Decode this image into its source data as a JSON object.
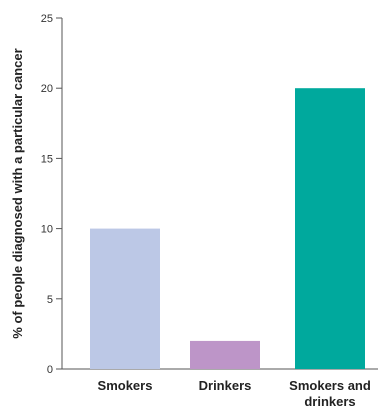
{
  "chart_data": {
    "type": "bar",
    "title": "",
    "xlabel": "",
    "ylabel": "% of people diagnosed with a particular cancer",
    "ylim": [
      0,
      25
    ],
    "yticks": [
      0,
      5,
      10,
      15,
      20,
      25
    ],
    "grid": false,
    "categories": [
      [
        "Smokers"
      ],
      [
        "Drinkers"
      ],
      [
        "Smokers and",
        "drinkers"
      ]
    ],
    "values": [
      10,
      2,
      20
    ],
    "colors": [
      "#bcc8e6",
      "#bd95c8",
      "#00a99d"
    ]
  }
}
